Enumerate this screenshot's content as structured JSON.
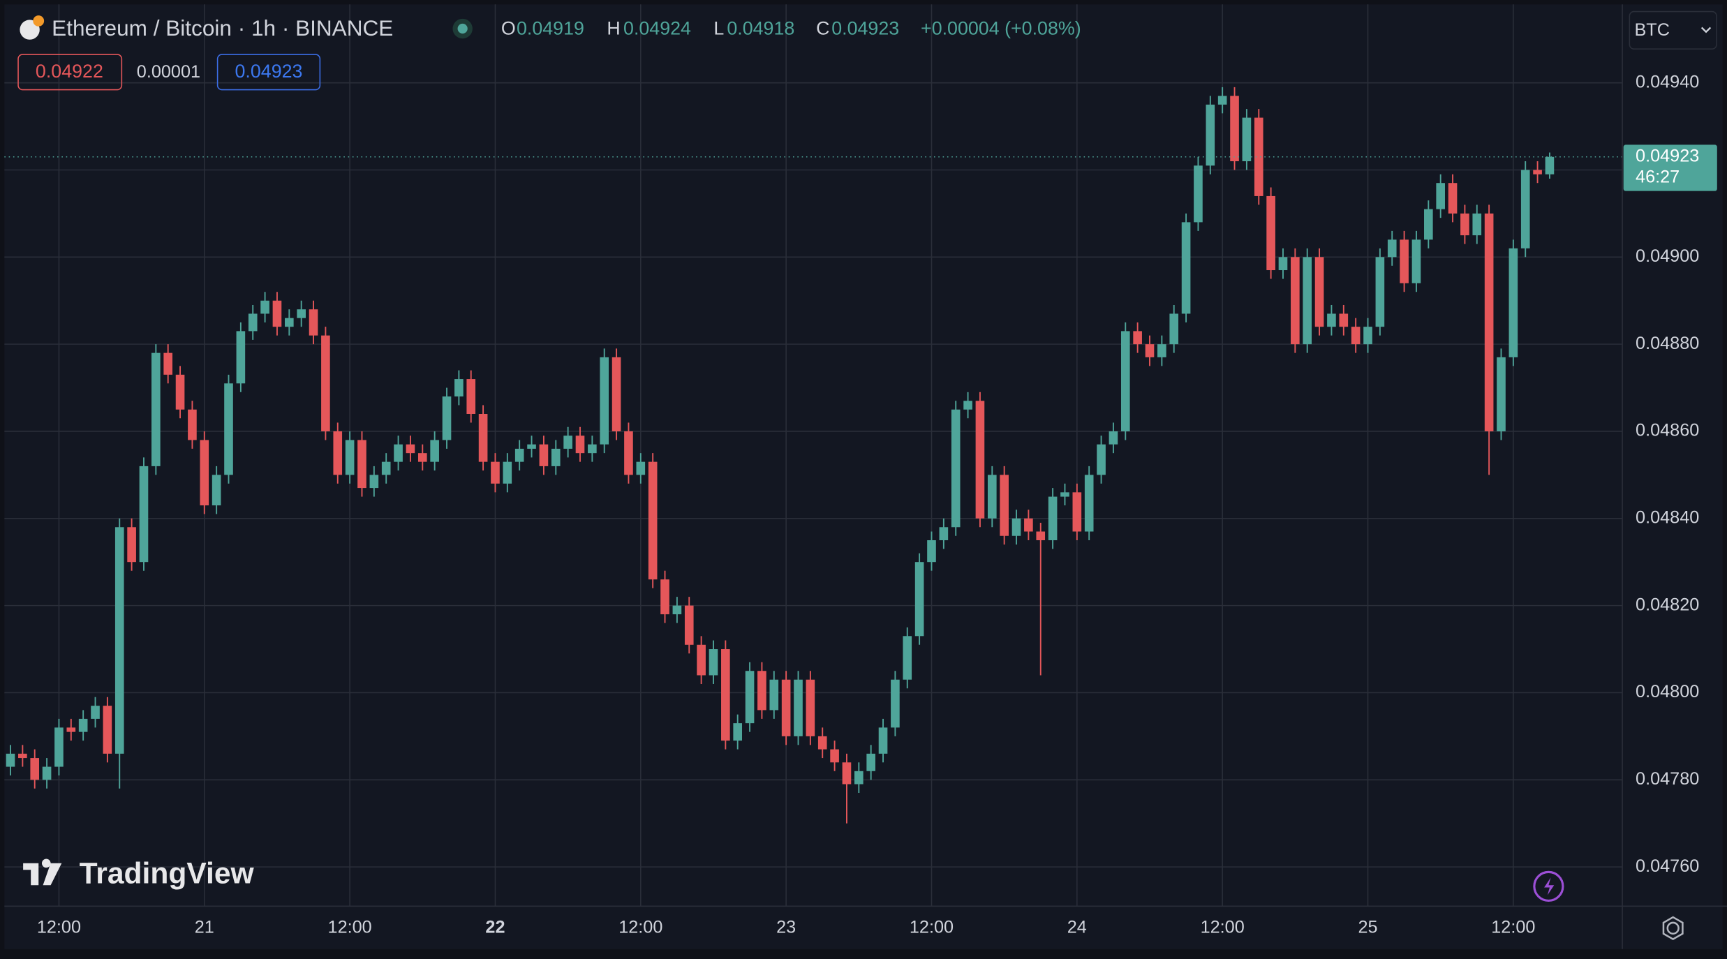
{
  "chart_data": {
    "type": "candlestick",
    "title": "Ethereum / Bitcoin · 1h · BINANCE",
    "ohlc_letters": [
      "O",
      "H",
      "L",
      "C"
    ],
    "change": "+0.00004 (+0.08%)",
    "quote": {
      "bid": "0.04922",
      "spread": "0.00001",
      "ask": "0.04923"
    },
    "countdown": "46:27",
    "currency": "BTC",
    "brand": "TradingView",
    "up_color": "#4fa59a",
    "down_color": "#e5575a",
    "grid": true,
    "open": [
      0.04783,
      0.04786,
      0.04785,
      0.0478,
      0.04783,
      0.04792,
      0.04791,
      0.04794,
      0.04797,
      0.04786,
      0.04838,
      0.0483,
      0.04852,
      0.04878,
      0.04873,
      0.04865,
      0.04858,
      0.04843,
      0.0485,
      0.04871,
      0.04883,
      0.04887,
      0.0489,
      0.04884,
      0.04886,
      0.04888,
      0.04882,
      0.0486,
      0.0485,
      0.04858,
      0.04847,
      0.0485,
      0.04853,
      0.04857,
      0.04855,
      0.04853,
      0.04858,
      0.04868,
      0.04872,
      0.04864,
      0.04853,
      0.04848,
      0.04853,
      0.04856,
      0.04857,
      0.04852,
      0.04856,
      0.04859,
      0.04855,
      0.04857,
      0.04877,
      0.0486,
      0.0485,
      0.04853,
      0.04826,
      0.04818,
      0.0482,
      0.04811,
      0.04804,
      0.0481,
      0.04789,
      0.04793,
      0.04805,
      0.04796,
      0.04803,
      0.0479,
      0.04803,
      0.0479,
      0.04787,
      0.04784,
      0.04779,
      0.04782,
      0.04786,
      0.04792,
      0.04803,
      0.04813,
      0.0483,
      0.04835,
      0.04838,
      0.04865,
      0.04867,
      0.0484,
      0.0485,
      0.04836,
      0.0484,
      0.04837,
      0.04835,
      0.04845,
      0.04846,
      0.04837,
      0.0485,
      0.04857,
      0.0486,
      0.04883,
      0.0488,
      0.04877,
      0.0488,
      0.04887,
      0.04908,
      0.04921,
      0.04935,
      0.04937,
      0.04922,
      0.04932,
      0.04914,
      0.04897,
      0.049,
      0.0488,
      0.049,
      0.04884,
      0.04887,
      0.04884,
      0.0488,
      0.04884,
      0.049,
      0.04904,
      0.04894,
      0.04904,
      0.04911,
      0.04917,
      0.0491,
      0.04905,
      0.0491,
      0.0486,
      0.04877,
      0.04902,
      0.0492,
      0.04919
    ],
    "high": [
      0.04788,
      0.04788,
      0.04787,
      0.04785,
      0.04794,
      0.04794,
      0.04796,
      0.04799,
      0.04799,
      0.0484,
      0.0484,
      0.04854,
      0.0488,
      0.0488,
      0.04875,
      0.04867,
      0.0486,
      0.04852,
      0.04873,
      0.04885,
      0.04889,
      0.04892,
      0.04892,
      0.04888,
      0.0489,
      0.0489,
      0.04884,
      0.04862,
      0.0486,
      0.0486,
      0.04852,
      0.04855,
      0.04859,
      0.04859,
      0.04857,
      0.0486,
      0.0487,
      0.04874,
      0.04874,
      0.04866,
      0.04855,
      0.04855,
      0.04858,
      0.04859,
      0.04859,
      0.04858,
      0.04861,
      0.04861,
      0.04859,
      0.04879,
      0.04879,
      0.04862,
      0.04855,
      0.04855,
      0.04828,
      0.04822,
      0.04822,
      0.04813,
      0.04812,
      0.04812,
      0.04795,
      0.04807,
      0.04807,
      0.04805,
      0.04805,
      0.04805,
      0.04805,
      0.04792,
      0.04789,
      0.04786,
      0.04784,
      0.04788,
      0.04794,
      0.04805,
      0.04815,
      0.04832,
      0.04837,
      0.0484,
      0.04867,
      0.04869,
      0.04869,
      0.04852,
      0.04852,
      0.04842,
      0.04842,
      0.04839,
      0.04847,
      0.04848,
      0.04848,
      0.04852,
      0.04859,
      0.04862,
      0.04885,
      0.04885,
      0.04882,
      0.04882,
      0.04889,
      0.0491,
      0.04923,
      0.04937,
      0.04939,
      0.04939,
      0.04934,
      0.04934,
      0.04916,
      0.04902,
      0.04902,
      0.04902,
      0.04902,
      0.04889,
      0.04889,
      0.04886,
      0.04886,
      0.04902,
      0.04906,
      0.04906,
      0.04906,
      0.04913,
      0.04919,
      0.04919,
      0.04912,
      0.04912,
      0.04912,
      0.04879,
      0.04904,
      0.04922,
      0.04922,
      0.04924
    ],
    "low": [
      0.04781,
      0.04783,
      0.04778,
      0.04778,
      0.04781,
      0.04789,
      0.04789,
      0.04792,
      0.04784,
      0.04778,
      0.04828,
      0.04828,
      0.0485,
      0.04871,
      0.04863,
      0.04856,
      0.04841,
      0.04841,
      0.04848,
      0.04869,
      0.04881,
      0.04885,
      0.04882,
      0.04882,
      0.04884,
      0.0488,
      0.04858,
      0.04848,
      0.04848,
      0.04845,
      0.04845,
      0.04848,
      0.04851,
      0.04853,
      0.04851,
      0.04851,
      0.04856,
      0.04866,
      0.04862,
      0.04851,
      0.04846,
      0.04846,
      0.04851,
      0.04854,
      0.0485,
      0.0485,
      0.04854,
      0.04853,
      0.04853,
      0.04855,
      0.04858,
      0.04848,
      0.04848,
      0.04824,
      0.04816,
      0.04816,
      0.04809,
      0.04802,
      0.04802,
      0.04787,
      0.04787,
      0.04791,
      0.04794,
      0.04794,
      0.04788,
      0.04788,
      0.04788,
      0.04785,
      0.04782,
      0.0477,
      0.04777,
      0.0478,
      0.04784,
      0.0479,
      0.04801,
      0.04811,
      0.04828,
      0.04833,
      0.04836,
      0.04863,
      0.04838,
      0.04838,
      0.04834,
      0.04834,
      0.04835,
      0.04804,
      0.04833,
      0.04843,
      0.04835,
      0.04835,
      0.04848,
      0.04855,
      0.04858,
      0.04878,
      0.04875,
      0.04875,
      0.04878,
      0.04885,
      0.04906,
      0.04919,
      0.04933,
      0.0492,
      0.0492,
      0.04912,
      0.04895,
      0.04895,
      0.04878,
      0.04878,
      0.04882,
      0.04882,
      0.04882,
      0.04878,
      0.04878,
      0.04882,
      0.04898,
      0.04892,
      0.04892,
      0.04902,
      0.04909,
      0.04908,
      0.04903,
      0.04903,
      0.0485,
      0.04858,
      0.04875,
      0.049,
      0.04917,
      0.04918
    ],
    "close": [
      0.04786,
      0.04785,
      0.0478,
      0.04783,
      0.04792,
      0.04791,
      0.04794,
      0.04797,
      0.04786,
      0.04838,
      0.0483,
      0.04852,
      0.04878,
      0.04873,
      0.04865,
      0.04858,
      0.04843,
      0.0485,
      0.04871,
      0.04883,
      0.04887,
      0.0489,
      0.04884,
      0.04886,
      0.04888,
      0.04882,
      0.0486,
      0.0485,
      0.04858,
      0.04847,
      0.0485,
      0.04853,
      0.04857,
      0.04855,
      0.04853,
      0.04858,
      0.04868,
      0.04872,
      0.04864,
      0.04853,
      0.04848,
      0.04853,
      0.04856,
      0.04857,
      0.04852,
      0.04856,
      0.04859,
      0.04855,
      0.04857,
      0.04877,
      0.0486,
      0.0485,
      0.04853,
      0.04826,
      0.04818,
      0.0482,
      0.04811,
      0.04804,
      0.0481,
      0.04789,
      0.04793,
      0.04805,
      0.04796,
      0.04803,
      0.0479,
      0.04803,
      0.0479,
      0.04787,
      0.04784,
      0.04779,
      0.04782,
      0.04786,
      0.04792,
      0.04803,
      0.04813,
      0.0483,
      0.04835,
      0.04838,
      0.04865,
      0.04867,
      0.0484,
      0.0485,
      0.04836,
      0.0484,
      0.04837,
      0.04835,
      0.04845,
      0.04846,
      0.04837,
      0.0485,
      0.04857,
      0.0486,
      0.04883,
      0.0488,
      0.04877,
      0.0488,
      0.04887,
      0.04908,
      0.04921,
      0.04935,
      0.04937,
      0.04922,
      0.04932,
      0.04914,
      0.04897,
      0.049,
      0.0488,
      0.049,
      0.04884,
      0.04887,
      0.04884,
      0.0488,
      0.04884,
      0.049,
      0.04904,
      0.04894,
      0.04904,
      0.04911,
      0.04917,
      0.0491,
      0.04905,
      0.0491,
      0.0486,
      0.04877,
      0.04902,
      0.0492,
      0.04919,
      0.04923
    ],
    "ylim": [
      0.04751,
      0.04958
    ],
    "yticks": [
      {
        "value": 0.0476,
        "label": "0.04760"
      },
      {
        "value": 0.0478,
        "label": "0.04780"
      },
      {
        "value": 0.048,
        "label": "0.04800"
      },
      {
        "value": 0.0482,
        "label": "0.04820"
      },
      {
        "value": 0.0484,
        "label": "0.04840"
      },
      {
        "value": 0.0486,
        "label": "0.04860"
      },
      {
        "value": 0.0488,
        "label": "0.04880"
      },
      {
        "value": 0.049,
        "label": "0.04900"
      },
      {
        "value": 0.0492,
        "label": "0.04920"
      },
      {
        "value": 0.0494,
        "label": "0.04940"
      }
    ],
    "xlim": [
      -0.5,
      133
    ],
    "xticks": [
      {
        "value": 4,
        "label": "12:00"
      },
      {
        "value": 16,
        "label": "21"
      },
      {
        "value": 28,
        "label": "12:00"
      },
      {
        "value": 40,
        "label": "22",
        "bold": true
      },
      {
        "value": 52,
        "label": "12:00"
      },
      {
        "value": 64,
        "label": "23"
      },
      {
        "value": 76,
        "label": "12:00"
      },
      {
        "value": 88,
        "label": "24"
      },
      {
        "value": 100,
        "label": "12:00"
      },
      {
        "value": 112,
        "label": "25"
      },
      {
        "value": 124,
        "label": "12:00"
      }
    ]
  }
}
